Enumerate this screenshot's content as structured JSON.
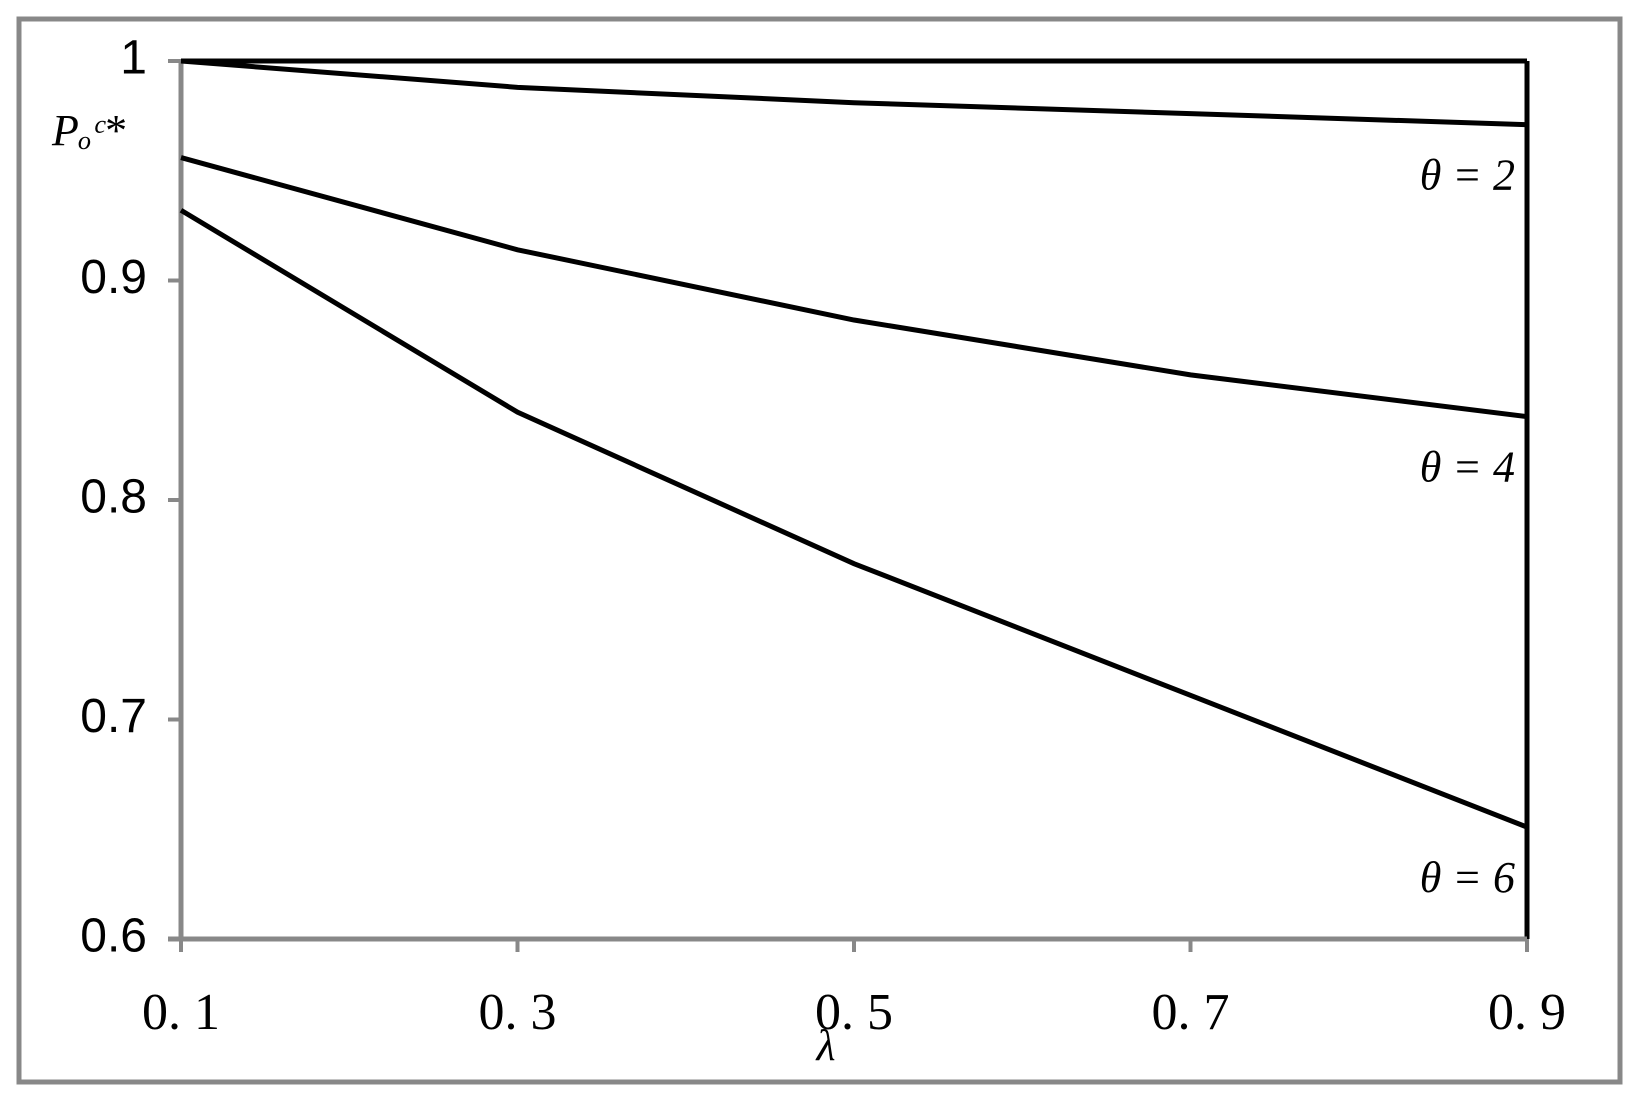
{
  "chart_data": {
    "type": "line",
    "ylabel": "Pₒᶜ*",
    "xlabel": "λ",
    "x": [
      0.1,
      0.3,
      0.5,
      0.7,
      0.9
    ],
    "series": [
      {
        "name": "θ = 2",
        "color": "#000000",
        "values": [
          1.0,
          0.988,
          0.981,
          0.976,
          0.971
        ]
      },
      {
        "name": "θ = 4",
        "color": "#000000",
        "values": [
          0.956,
          0.914,
          0.882,
          0.857,
          0.838
        ]
      },
      {
        "name": "θ = 6",
        "color": "#000000",
        "values": [
          0.932,
          0.84,
          0.771,
          0.711,
          0.651
        ]
      }
    ],
    "xlim": [
      0.1,
      0.9
    ],
    "xticks": [
      {
        "value": 0.1,
        "label": "0. 1"
      },
      {
        "value": 0.3,
        "label": "0. 3"
      },
      {
        "value": 0.5,
        "label": "0. 5"
      },
      {
        "value": 0.7,
        "label": "0. 7"
      },
      {
        "value": 0.9,
        "label": "0. 9"
      }
    ],
    "ylim": [
      0.6,
      1
    ],
    "yticks": [
      0.6,
      0.7,
      0.8,
      0.9,
      1
    ],
    "grid": false
  }
}
